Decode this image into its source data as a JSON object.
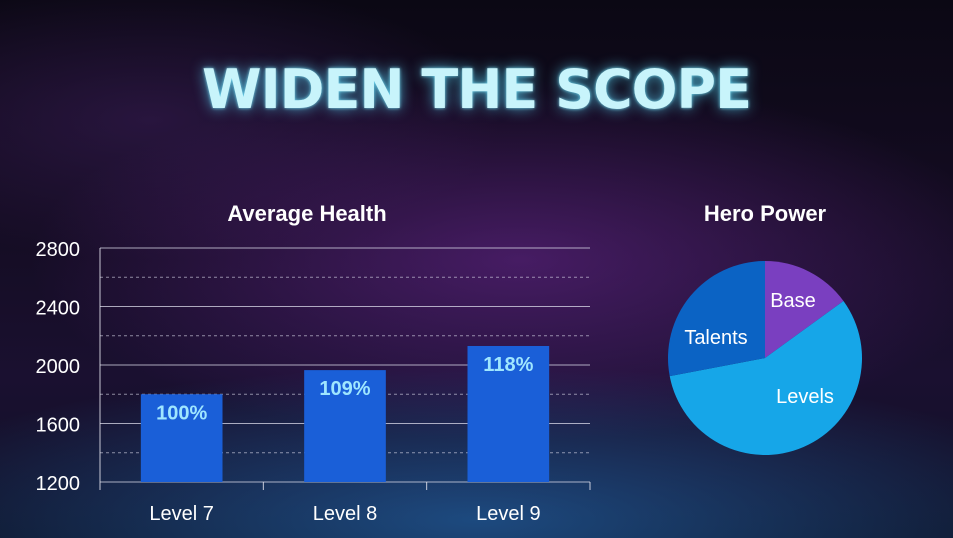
{
  "title": "WIDEN THE SCOPE",
  "chart_data": [
    {
      "type": "bar",
      "title": "Average Health",
      "categories": [
        "Level 7",
        "Level 8",
        "Level 9"
      ],
      "values": [
        1800,
        1965,
        2130
      ],
      "data_labels": [
        "100%",
        "109%",
        "118%"
      ],
      "ylim": [
        1200,
        2800
      ],
      "y_ticks": [
        "1200",
        "1600",
        "2000",
        "2400",
        "2800"
      ],
      "grid": true,
      "bar_color": "#1a5fd8",
      "label_color": "#9fe6ff"
    },
    {
      "type": "pie",
      "title": "Hero Power",
      "labels": [
        "Base",
        "Levels",
        "Talents"
      ],
      "values": [
        15,
        57,
        28
      ],
      "colors": [
        "#7a3fc0",
        "#16a6e8",
        "#0b63c4"
      ]
    }
  ]
}
